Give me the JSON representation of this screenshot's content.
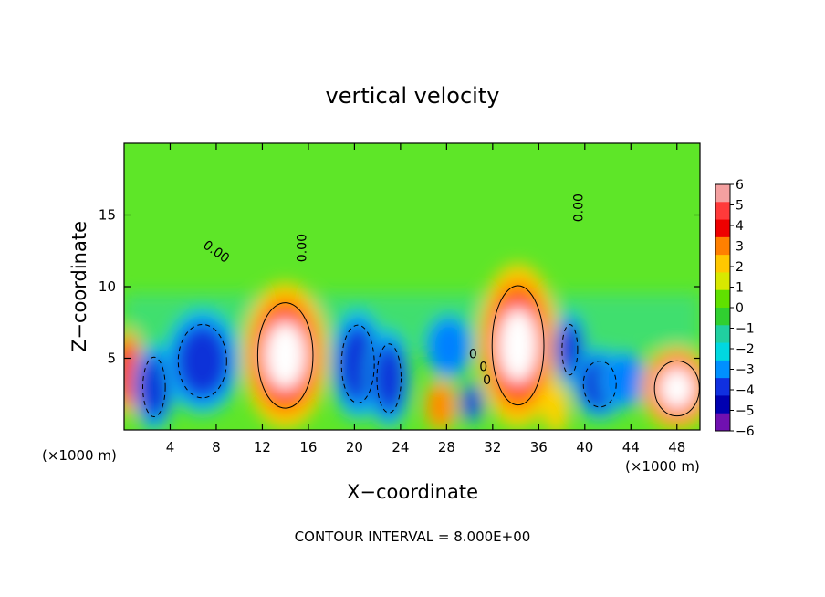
{
  "chart_data": {
    "type": "heatmap",
    "title": "vertical velocity",
    "xlabel": "X−coordinate",
    "ylabel": "Z−coordinate",
    "x_unit_left": "(×1000 m)",
    "x_unit_right": "(×1000 m)",
    "footer": "CONTOUR INTERVAL = 8.000E+00",
    "xlim": [
      0,
      50
    ],
    "ylim": [
      0,
      20
    ],
    "xticks": [
      4,
      8,
      12,
      16,
      20,
      24,
      28,
      32,
      36,
      40,
      44,
      48
    ],
    "yticks": [
      5,
      10,
      15
    ],
    "colorbar": {
      "ticks": [
        "6",
        "5",
        "4",
        "3",
        "2",
        "1",
        "0",
        "−1",
        "−2",
        "−3",
        "−4",
        "−5",
        "−6"
      ],
      "range": [
        -6,
        6
      ],
      "colors": [
        "#f4a0a0",
        "#ff3a3a",
        "#ee0000",
        "#ff8000",
        "#ffc800",
        "#d8e800",
        "#60e000",
        "#30d030",
        "#20d0a0",
        "#00d8e0",
        "#0090ff",
        "#1030e0",
        "#0000b0",
        "#7010b0"
      ]
    },
    "contour_labels": [
      {
        "text": "0.00",
        "x": 7.8,
        "y": 12.2,
        "rotate": 35
      },
      {
        "text": "0.00",
        "x": 15.8,
        "y": 12.7,
        "rotate": -90
      },
      {
        "text": "0.00",
        "x": 39.8,
        "y": 15.5,
        "rotate": -90
      },
      {
        "text": "0",
        "x": 30.3,
        "y": 5.0,
        "rotate": 0
      },
      {
        "text": "0",
        "x": 31.2,
        "y": 4.1,
        "rotate": 0
      },
      {
        "text": "0",
        "x": 31.5,
        "y": 3.2,
        "rotate": 0
      }
    ],
    "cells": [
      {
        "x": 0.3,
        "z": 4.0,
        "rx": 0.9,
        "rz": 2.6,
        "v": 5.5
      },
      {
        "x": 2.6,
        "z": 3.0,
        "rx": 1.3,
        "rz": 2.6,
        "v": -7
      },
      {
        "x": 6.8,
        "z": 4.8,
        "rx": 2.8,
        "rz": 3.2,
        "v": -7
      },
      {
        "x": 14.0,
        "z": 5.2,
        "rx": 3.2,
        "rz": 4.6,
        "v": 9
      },
      {
        "x": 20.3,
        "z": 4.6,
        "rx": 1.9,
        "rz": 3.4,
        "v": -7
      },
      {
        "x": 23.0,
        "z": 3.6,
        "rx": 1.4,
        "rz": 3.0,
        "v": -7
      },
      {
        "x": 28.2,
        "z": 5.8,
        "rx": 1.6,
        "rz": 1.8,
        "v": -5
      },
      {
        "x": 27.5,
        "z": 1.7,
        "rx": 0.9,
        "rz": 1.3,
        "v": 5
      },
      {
        "x": 30.2,
        "z": 1.9,
        "rx": 0.5,
        "rz": 1.0,
        "v": -5.5
      },
      {
        "x": 34.2,
        "z": 5.9,
        "rx": 3.0,
        "rz": 5.2,
        "v": 9
      },
      {
        "x": 38.7,
        "z": 5.6,
        "rx": 0.9,
        "rz": 2.2,
        "v": -6
      },
      {
        "x": 41.3,
        "z": 3.2,
        "rx": 1.9,
        "rz": 2.0,
        "v": -7
      },
      {
        "x": 43.5,
        "z": 3.5,
        "rx": 1.6,
        "rz": 1.5,
        "v": -4.5
      },
      {
        "x": 48.0,
        "z": 2.9,
        "rx": 2.6,
        "rz": 2.4,
        "v": 9
      },
      {
        "x": 37.5,
        "z": 1.5,
        "rx": 0.6,
        "rz": 1.3,
        "v": 1.5
      }
    ]
  }
}
